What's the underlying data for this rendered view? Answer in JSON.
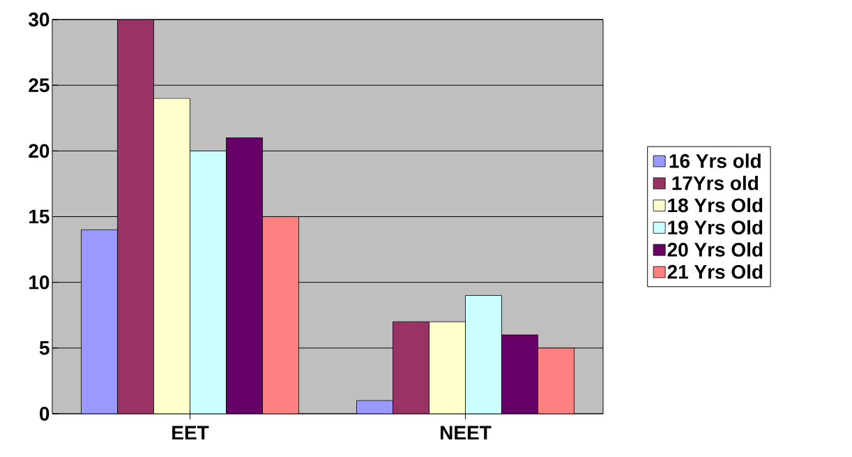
{
  "chart_data": {
    "type": "bar",
    "categories": [
      "EET",
      "NEET"
    ],
    "series": [
      {
        "name": "16 Yrs old",
        "color": "#9999ff",
        "values": [
          14,
          1
        ]
      },
      {
        "name": "17Yrs old",
        "color": "#993366",
        "values": [
          30,
          7
        ]
      },
      {
        "name": "18 Yrs Old",
        "color": "#ffffcc",
        "values": [
          24,
          7
        ]
      },
      {
        "name": "19 Yrs Old",
        "color": "#ccffff",
        "values": [
          20,
          9
        ]
      },
      {
        "name": "20 Yrs Old",
        "color": "#660066",
        "values": [
          21,
          6
        ]
      },
      {
        "name": "21 Yrs Old",
        "color": "#ff8080",
        "values": [
          15,
          5
        ]
      }
    ],
    "ylim": [
      0,
      30
    ],
    "yticks": [
      0,
      5,
      10,
      15,
      20,
      25,
      30
    ],
    "grid": "y",
    "legend": "right"
  }
}
